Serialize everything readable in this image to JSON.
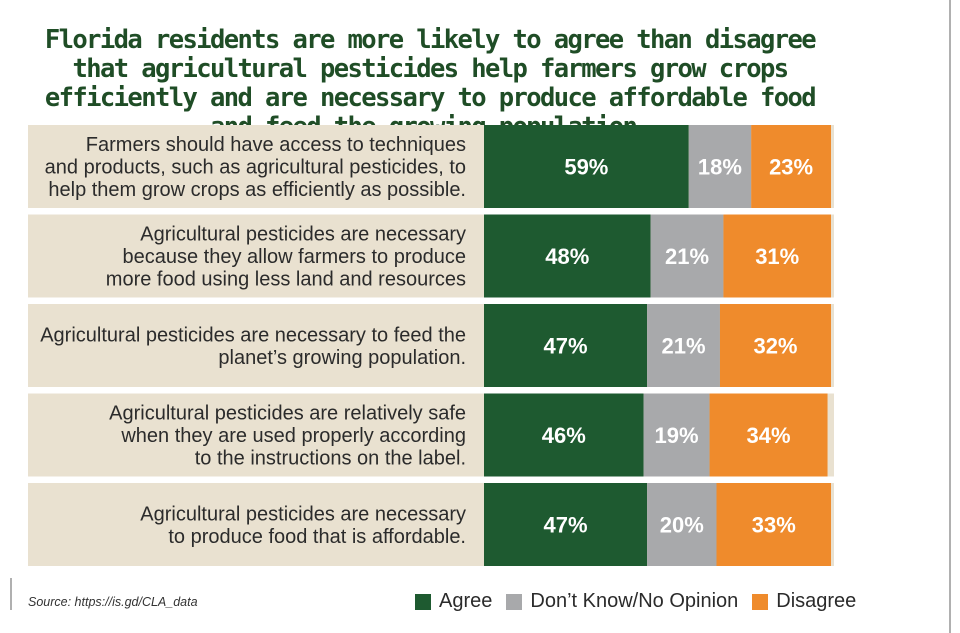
{
  "title": "Florida residents are more likely to agree than disagree that agricultural pesticides help farmers grow crops efficiently and are necessary to produce affordable food and feed the growing population.",
  "source": "Source: https://is.gd/CLA_data",
  "colors": {
    "agree": "#1e5a30",
    "neutral": "#a8a9ab",
    "disagree": "#ef8b2c",
    "label_band": "#e9e1d0"
  },
  "chart_data": {
    "type": "bar",
    "orientation": "horizontal",
    "stacked": true,
    "categories": [
      "Farmers should have access to techniques and products, such as agricultural pesticides, to help them grow crops as efficiently as possible.",
      "Agricultural pesticides are necessary because they allow farmers to produce more food using less land and resources",
      "Agricultural pesticides are necessary to feed the planet's growing population.",
      "Agricultural pesticides are relatively safe when they are used properly according to the instructions on the label.",
      "Agricultural pesticides are necessary to produce food that is affordable."
    ],
    "category_lines": [
      [
        "Farmers should have access to techniques",
        "and products, such as agricultural pesticides, to",
        "help them grow crops as efficiently as possible."
      ],
      [
        "Agricultural pesticides are necessary",
        "because they allow farmers to produce",
        "more food using less land and resources"
      ],
      [
        "Agricultural pesticides are necessary to feed the",
        "planet’s growing population."
      ],
      [
        "Agricultural pesticides are relatively safe",
        "when they are used properly according",
        "to the instructions on the label."
      ],
      [
        "Agricultural pesticides are necessary",
        "to produce food that is affordable."
      ]
    ],
    "series": [
      {
        "name": "Agree",
        "values": [
          59,
          48,
          47,
          46,
          47
        ],
        "color": "#1e5a30"
      },
      {
        "name": "Don’t Know/No Opinion",
        "values": [
          18,
          21,
          21,
          19,
          20
        ],
        "color": "#a8a9ab"
      },
      {
        "name": "Disagree",
        "values": [
          23,
          31,
          32,
          34,
          33
        ],
        "color": "#ef8b2c"
      }
    ],
    "value_format": "percent",
    "legend_position": "bottom"
  }
}
